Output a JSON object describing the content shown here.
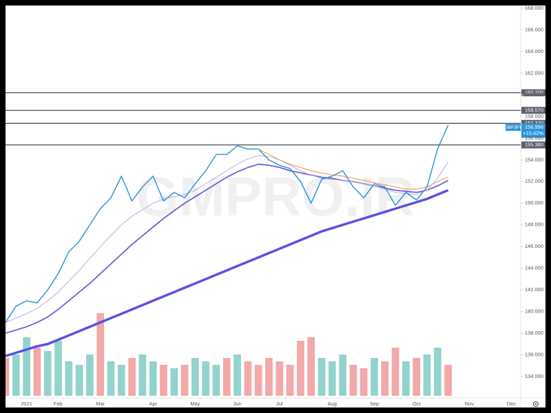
{
  "chart_data": {
    "type": "line",
    "symbol": "GBPJPY",
    "last": 156.996,
    "change": "+15.42%",
    "watermark": "GMPRO.IR",
    "categories": [
      null,
      null,
      "2021",
      null,
      null,
      "Feb",
      null,
      null,
      null,
      "Mar",
      null,
      null,
      null,
      null,
      "Apr",
      null,
      null,
      null,
      "May",
      null,
      null,
      null,
      "Jun",
      null,
      null,
      null,
      "Jul",
      null,
      null,
      null,
      null,
      "Aug",
      null,
      null,
      null,
      "Sep",
      null,
      null,
      null,
      "Oct",
      null,
      null,
      null,
      null,
      "Nov",
      null,
      null,
      null,
      "Dec"
    ],
    "series": [
      {
        "name": "GBPJPY",
        "color": "#2f95dc",
        "width": 1.5,
        "values": [
          139.0,
          140.5,
          141.0,
          140.8,
          142.0,
          143.5,
          145.5,
          146.5,
          148.0,
          149.5,
          150.5,
          152.5,
          150.2,
          151.5,
          152.5,
          150.2,
          151.0,
          150.5,
          151.8,
          153.0,
          154.5,
          154.5,
          155.3,
          155.0,
          155.0,
          154.0,
          153.5,
          153.2,
          152.0,
          150.0,
          152.2,
          152.5,
          153.0,
          151.5,
          150.5,
          151.8,
          151.5,
          149.8,
          151.0,
          150.3,
          151.5,
          155.0,
          157.2,
          null,
          null,
          null,
          null,
          null,
          null
        ]
      },
      {
        "color": "#b9abe6",
        "width": 1,
        "values": [
          139.0,
          139.4,
          139.8,
          140.3,
          141.0,
          141.8,
          142.8,
          143.8,
          144.9,
          146.0,
          147.0,
          148.0,
          148.8,
          149.4,
          150.0,
          150.4,
          150.6,
          150.8,
          151.2,
          151.8,
          152.4,
          153.0,
          153.6,
          154.1,
          154.4,
          154.3,
          154.0,
          153.5,
          153.0,
          152.6,
          152.3,
          152.2,
          152.1,
          152.0,
          151.8,
          151.6,
          151.3,
          151.0,
          150.9,
          150.8,
          151.2,
          152.3,
          153.8,
          null,
          null,
          null,
          null,
          null,
          null
        ]
      },
      {
        "color": "#f0a050",
        "width": 1.2,
        "values": [
          null,
          null,
          null,
          null,
          null,
          null,
          null,
          null,
          null,
          null,
          null,
          null,
          null,
          null,
          null,
          null,
          null,
          null,
          null,
          null,
          null,
          null,
          null,
          null,
          155.0,
          154.5,
          154.0,
          153.6,
          153.3,
          153.0,
          152.8,
          152.6,
          152.5,
          152.3,
          152.1,
          151.9,
          151.7,
          151.5,
          151.3,
          151.3,
          151.5,
          152.0,
          152.4,
          null,
          null,
          null,
          null,
          null,
          null
        ]
      },
      {
        "color": "#6a5fd6",
        "width": 1.8,
        "values": [
          138.0,
          138.3,
          138.6,
          139.0,
          139.5,
          140.2,
          141.0,
          141.8,
          142.6,
          143.5,
          144.4,
          145.3,
          146.2,
          147.0,
          147.8,
          148.6,
          149.3,
          150.0,
          150.6,
          151.2,
          151.8,
          152.4,
          152.9,
          153.3,
          153.6,
          153.5,
          153.3,
          153.0,
          152.8,
          152.6,
          152.4,
          152.3,
          152.1,
          152.0,
          151.8,
          151.6,
          151.4,
          151.2,
          151.1,
          151.0,
          151.2,
          151.6,
          152.1,
          null,
          null,
          null,
          null,
          null,
          null
        ]
      },
      {
        "color": "#5a4fe6",
        "width": 3.5,
        "values": [
          135.9,
          136.2,
          136.5,
          136.8,
          137.0,
          137.4,
          137.8,
          138.2,
          138.6,
          139.0,
          139.4,
          139.8,
          140.2,
          140.6,
          141.0,
          141.4,
          141.8,
          142.2,
          142.6,
          143.0,
          143.4,
          143.8,
          144.2,
          144.6,
          145.0,
          145.4,
          145.8,
          146.2,
          146.6,
          147.0,
          147.4,
          147.7,
          148.0,
          148.3,
          148.6,
          148.9,
          149.2,
          149.5,
          149.8,
          150.1,
          150.4,
          150.8,
          151.2,
          null,
          null,
          null,
          null,
          null,
          null
        ]
      }
    ],
    "volume": {
      "ylim": [
        0,
        130
      ],
      "values": [
        55,
        60,
        85,
        70,
        65,
        80,
        50,
        45,
        60,
        120,
        50,
        45,
        55,
        60,
        50,
        45,
        40,
        45,
        55,
        50,
        45,
        55,
        60,
        50,
        45,
        55,
        50,
        45,
        80,
        85,
        55,
        50,
        60,
        45,
        40,
        55,
        50,
        70,
        50,
        55,
        60,
        70,
        45,
        null,
        null,
        null,
        null,
        null,
        null
      ],
      "colors": [
        "#ef9a9a",
        "#80cbc4",
        "#80cbc4",
        "#ef9a9a",
        "#80cbc4",
        "#80cbc4",
        "#80cbc4",
        "#80cbc4",
        "#80cbc4",
        "#ef9a9a",
        "#80cbc4",
        "#80cbc4",
        "#ef9a9a",
        "#80cbc4",
        "#80cbc4",
        "#ef9a9a",
        "#80cbc4",
        "#ef9a9a",
        "#80cbc4",
        "#80cbc4",
        "#80cbc4",
        "#ef9a9a",
        "#80cbc4",
        "#ef9a9a",
        "#ef9a9a",
        "#ef9a9a",
        "#ef9a9a",
        "#ef9a9a",
        "#ef9a9a",
        "#ef9a9a",
        "#80cbc4",
        "#80cbc4",
        "#80cbc4",
        "#ef9a9a",
        "#ef9a9a",
        "#80cbc4",
        "#ef9a9a",
        "#ef9a9a",
        "#80cbc4",
        "#ef9a9a",
        "#80cbc4",
        "#80cbc4",
        "#ef9a9a",
        null,
        null,
        null,
        null,
        null,
        null
      ]
    },
    "levels": [
      {
        "value": 160.2,
        "label": "160.200"
      },
      {
        "value": 158.57,
        "label": "158.570"
      },
      {
        "value": 157.37,
        "label": "157.370"
      },
      {
        "value": 155.38,
        "label": "155.380"
      }
    ],
    "level_color": "#5d606b",
    "ylim": [
      133.5,
      168.5
    ],
    "yticks": [
      {
        "value": 134,
        "label": "134.000"
      },
      {
        "value": 136,
        "label": "136.000"
      },
      {
        "value": 138,
        "label": "138.000"
      },
      {
        "value": 140,
        "label": "140.000"
      },
      {
        "value": 142,
        "label": "142.000"
      },
      {
        "value": 144,
        "label": "144.000"
      },
      {
        "value": 146,
        "label": "146.000"
      },
      {
        "value": 148,
        "label": "148.000"
      },
      {
        "value": 150,
        "label": "150.000"
      },
      {
        "value": 152,
        "label": "152.000"
      },
      {
        "value": 154,
        "label": "154.000"
      },
      {
        "value": 156,
        "label": "156.000"
      },
      {
        "value": 158,
        "label": "158.000"
      },
      {
        "value": 160,
        "label": "160.000"
      },
      {
        "value": 162,
        "label": "162.000"
      },
      {
        "value": 164,
        "label": "164.000"
      },
      {
        "value": 166,
        "label": "166.000"
      },
      {
        "value": 168,
        "label": "168.000"
      }
    ]
  }
}
